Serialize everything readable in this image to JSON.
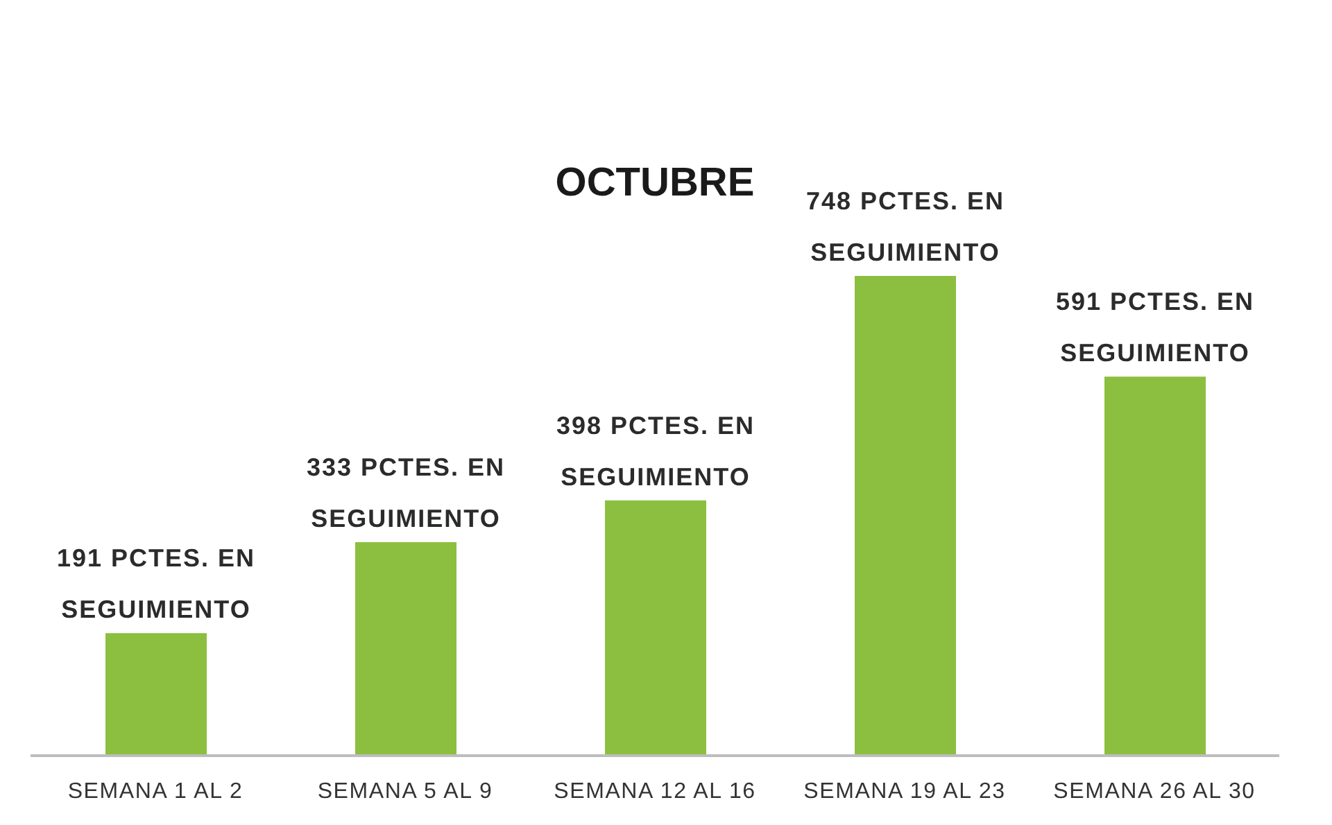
{
  "chart_data": {
    "type": "bar",
    "title": "OCTUBRE",
    "categories": [
      "SEMANA 1 AL 2",
      "SEMANA 5 AL 9",
      "SEMANA 12 AL 16",
      "SEMANA 19 AL 23",
      "SEMANA 26 AL 30"
    ],
    "values": [
      191,
      333,
      398,
      748,
      591
    ],
    "color": "#8cbf3f",
    "value_labels": [
      "191 PCTES. EN SEGUIMIENTO",
      "333 PCTES. EN SEGUIMIENTO",
      "398 PCTES. EN SEGUIMIENTO",
      "748 PCTES. EN SEGUIMIENTO",
      "591 PCTES. EN SEGUIMIENTO"
    ]
  }
}
